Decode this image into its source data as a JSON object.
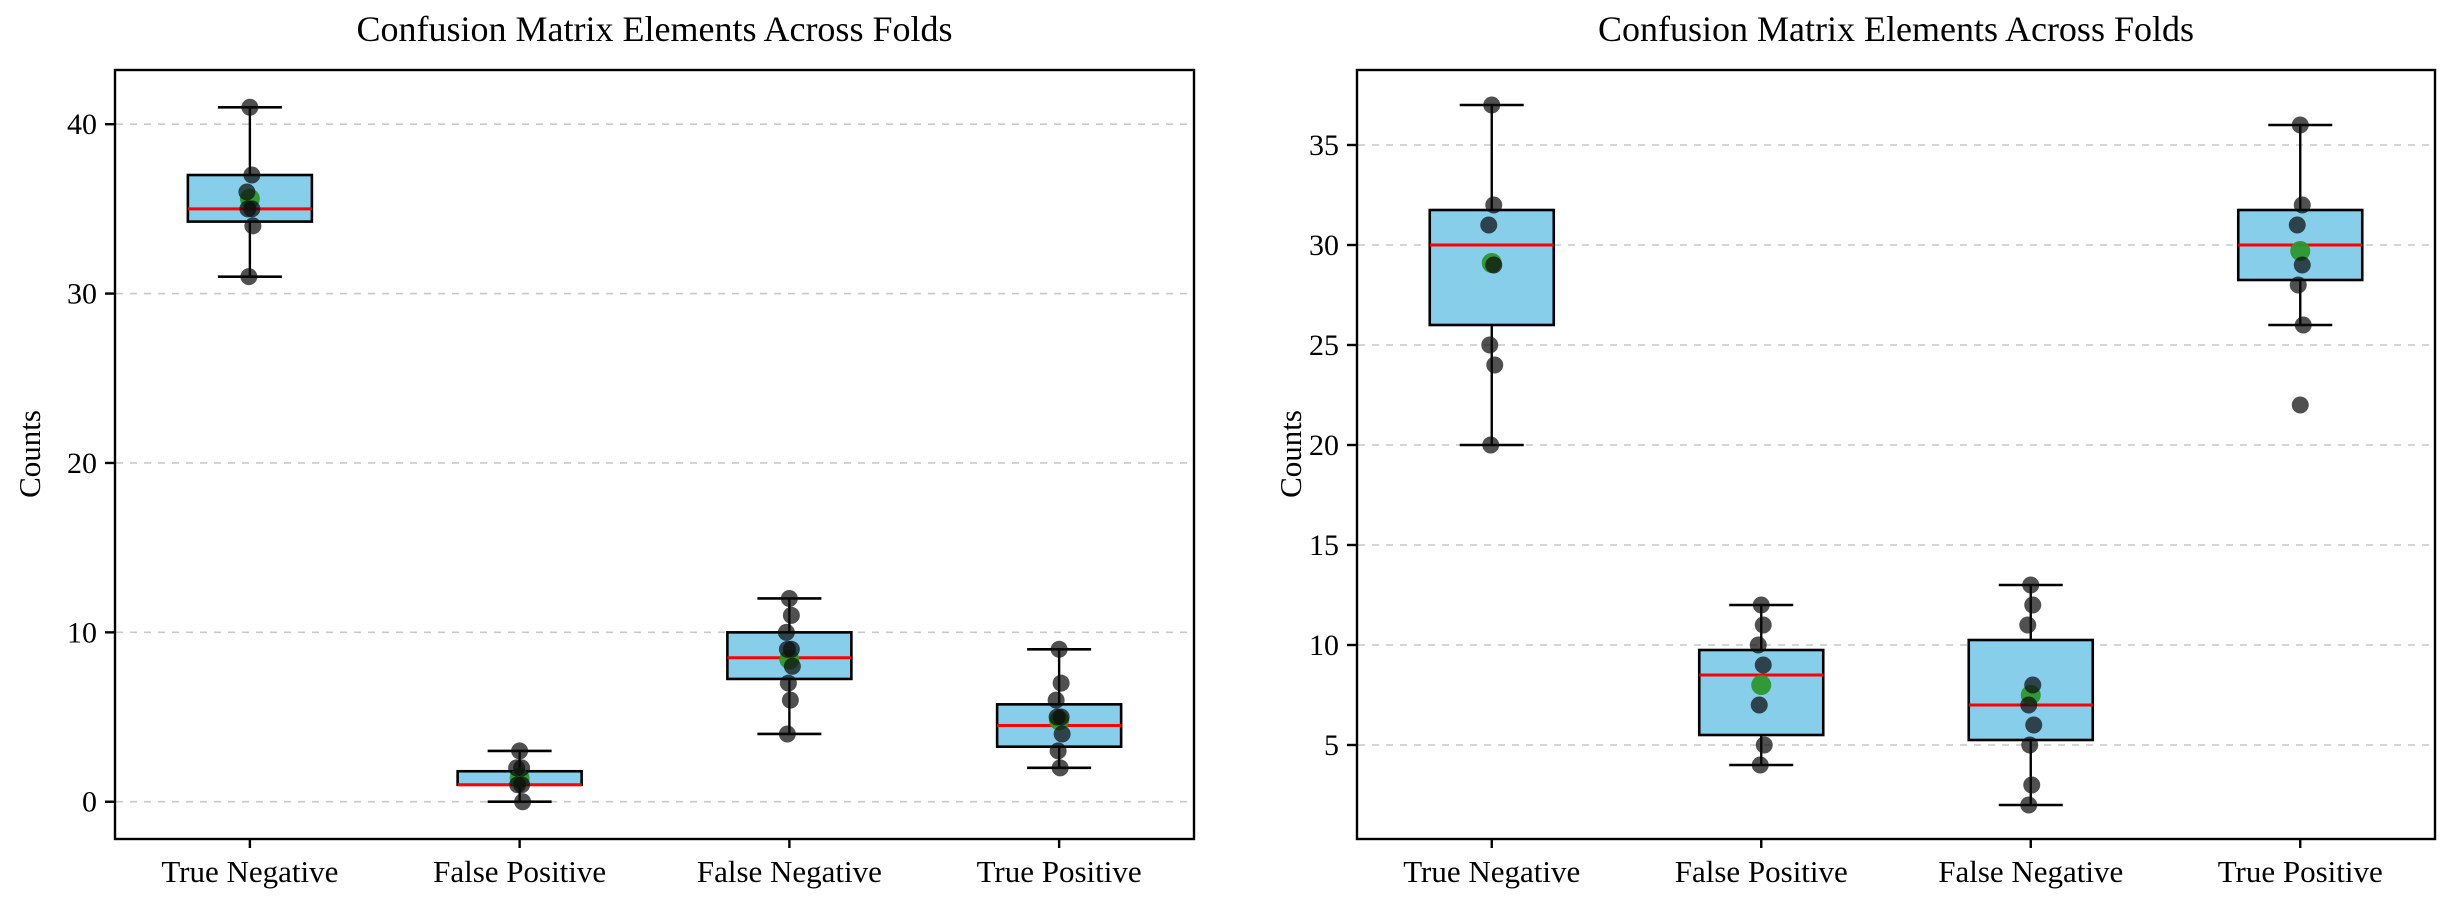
{
  "style": {
    "background": "#ffffff",
    "box_fill": "#87CEEB",
    "box_edge": "#000000",
    "median_color": "#ff0000",
    "whisker_color": "#000000",
    "point_color": "#0d0d0d",
    "point_opacity": 0.72,
    "mean_color": "#2d962d",
    "grid_color": "#c9c9c9",
    "spine_color": "#000000",
    "text_color": "#000000"
  },
  "chart_data": [
    {
      "type": "boxplot",
      "title": "Confusion Matrix Elements Across Folds",
      "ylabel": "Counts",
      "xlabel": "",
      "categories": [
        "True Negative",
        "False Positive",
        "False Negative",
        "True Positive"
      ],
      "yticks": [
        0,
        10,
        20,
        30,
        40
      ],
      "ylim": [
        -2.2,
        43.2
      ],
      "grid": "horizontal-dashed",
      "legend": "none",
      "series": [
        {
          "category": "True Negative",
          "whisker_low": 31,
          "q1": 34.25,
          "median": 35,
          "q3": 37,
          "whisker_high": 41,
          "mean": 35.6,
          "points": [
            41,
            37,
            36,
            35,
            35,
            34,
            31
          ],
          "outliers": []
        },
        {
          "category": "False Positive",
          "whisker_low": 0,
          "q1": 1,
          "median": 1,
          "q3": 1.8,
          "whisker_high": 3,
          "mean": 1.4,
          "points": [
            3,
            2,
            2,
            1,
            1,
            0
          ],
          "outliers": []
        },
        {
          "category": "False Negative",
          "whisker_low": 4,
          "q1": 7.25,
          "median": 8.5,
          "q3": 10,
          "whisker_high": 12,
          "mean": 8.4,
          "points": [
            12,
            11,
            10,
            9,
            9,
            8,
            7,
            6,
            4
          ],
          "outliers": []
        },
        {
          "category": "True Positive",
          "whisker_low": 2,
          "q1": 3.25,
          "median": 4.5,
          "q3": 5.75,
          "whisker_high": 9,
          "mean": 4.8,
          "points": [
            9,
            7,
            6,
            5,
            5,
            4,
            3,
            2
          ],
          "outliers": []
        }
      ]
    },
    {
      "type": "boxplot",
      "title": "Confusion Matrix Elements Across Folds",
      "ylabel": "Counts",
      "xlabel": "",
      "categories": [
        "True Negative",
        "False Positive",
        "False Negative",
        "True Positive"
      ],
      "yticks": [
        5,
        10,
        15,
        20,
        25,
        30,
        35
      ],
      "ylim": [
        0.3,
        38.75
      ],
      "grid": "horizontal-dashed",
      "legend": "none",
      "series": [
        {
          "category": "True Negative",
          "whisker_low": 20,
          "q1": 26,
          "median": 30,
          "q3": 31.75,
          "whisker_high": 37,
          "mean": 29.1,
          "points": [
            37,
            32,
            31,
            29,
            25,
            24,
            20
          ],
          "outliers": []
        },
        {
          "category": "False Positive",
          "whisker_low": 4,
          "q1": 5.5,
          "median": 8.5,
          "q3": 9.75,
          "whisker_high": 12,
          "mean": 8.0,
          "points": [
            12,
            11,
            10,
            9,
            7,
            5,
            4
          ],
          "outliers": []
        },
        {
          "category": "False Negative",
          "whisker_low": 2,
          "q1": 5.25,
          "median": 7,
          "q3": 10.25,
          "whisker_high": 13,
          "mean": 7.5,
          "points": [
            13,
            12,
            11,
            8,
            7,
            6,
            5,
            3,
            2
          ],
          "outliers": []
        },
        {
          "category": "True Positive",
          "whisker_low": 26,
          "q1": 28.25,
          "median": 30,
          "q3": 31.75,
          "whisker_high": 36,
          "mean": 29.7,
          "points": [
            36,
            32,
            31,
            29,
            28,
            26
          ],
          "outliers": [
            22
          ]
        }
      ]
    }
  ]
}
